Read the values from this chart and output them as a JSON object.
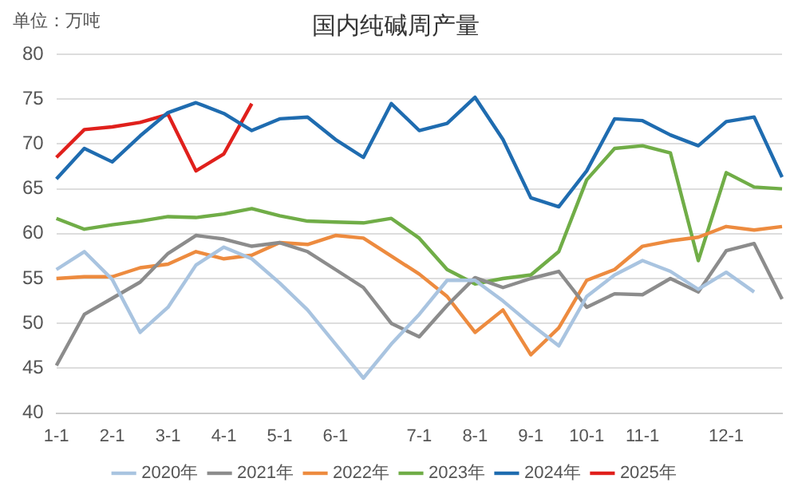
{
  "chart_data": {
    "type": "line",
    "title": "国内纯碱周产量",
    "annotations": [
      "单位：万吨"
    ],
    "categories": [
      "1-1",
      null,
      "2-1",
      null,
      "3-1",
      null,
      "4-1",
      null,
      "5-1",
      null,
      "6-1",
      null,
      null,
      "7-1",
      null,
      "8-1",
      null,
      "9-1",
      null,
      "10-1",
      null,
      "11-1",
      null,
      null,
      "12-1",
      null,
      null
    ],
    "series": [
      {
        "name": "2020年",
        "color": "#a9c4e0",
        "values": [
          56.0,
          58.0,
          54.9,
          49.0,
          51.8,
          56.5,
          58.5,
          57.2,
          54.5,
          51.5,
          47.7,
          43.9,
          47.7,
          51.0,
          54.8,
          54.8,
          52.5,
          49.9,
          47.5,
          53.0,
          55.4,
          57.0,
          55.8,
          53.8,
          55.7,
          53.5,
          null
        ]
      },
      {
        "name": "2021年",
        "color": "#8c8c8c",
        "values": [
          45.3,
          51.0,
          52.8,
          54.6,
          57.8,
          59.8,
          59.4,
          58.6,
          59.0,
          58.0,
          56.0,
          54.0,
          50.0,
          48.5,
          52.0,
          55.1,
          54.0,
          55.0,
          55.8,
          51.8,
          53.3,
          53.2,
          55.0,
          53.5,
          58.1,
          58.9,
          52.7
        ]
      },
      {
        "name": "2022年",
        "color": "#ed8b3f",
        "values": [
          55.0,
          55.2,
          55.2,
          56.2,
          56.6,
          58.0,
          57.2,
          57.6,
          59.0,
          58.8,
          59.8,
          59.5,
          57.5,
          55.5,
          53.0,
          49.0,
          51.5,
          46.5,
          49.5,
          54.8,
          56.0,
          58.6,
          59.2,
          59.6,
          60.8,
          60.4,
          60.8
        ]
      },
      {
        "name": "2023年",
        "color": "#70ad47",
        "values": [
          61.7,
          60.5,
          61.0,
          61.4,
          61.9,
          61.8,
          62.2,
          62.8,
          62.0,
          61.4,
          61.3,
          61.2,
          61.7,
          59.5,
          56.0,
          54.4,
          55.0,
          55.4,
          58.0,
          66.0,
          69.5,
          69.8,
          69.0,
          57.0,
          66.8,
          65.2,
          65.0
        ]
      },
      {
        "name": "2024年",
        "color": "#1f6cb0",
        "values": [
          66.1,
          69.5,
          68.0,
          70.9,
          73.5,
          74.6,
          73.4,
          71.5,
          72.8,
          73.0,
          70.5,
          68.5,
          74.5,
          71.5,
          72.3,
          75.2,
          70.5,
          64.0,
          63.0,
          67.0,
          72.8,
          72.6,
          71.0,
          69.8,
          72.5,
          73.0,
          66.3
        ]
      },
      {
        "name": "2025年",
        "color": "#e0201c",
        "values": [
          68.5,
          71.6,
          71.9,
          72.4,
          73.3,
          67.0,
          68.9,
          74.5,
          null,
          null,
          null,
          null,
          null,
          null,
          null,
          null,
          null,
          null,
          null,
          null,
          null,
          null,
          null,
          null,
          null,
          null,
          null
        ]
      }
    ],
    "ylim": [
      40,
      80
    ],
    "yticks": [
      40,
      45,
      50,
      55,
      60,
      65,
      70,
      75,
      80
    ],
    "grid": "y",
    "legend": "bottom",
    "marker": "none",
    "line_style": "solid"
  }
}
